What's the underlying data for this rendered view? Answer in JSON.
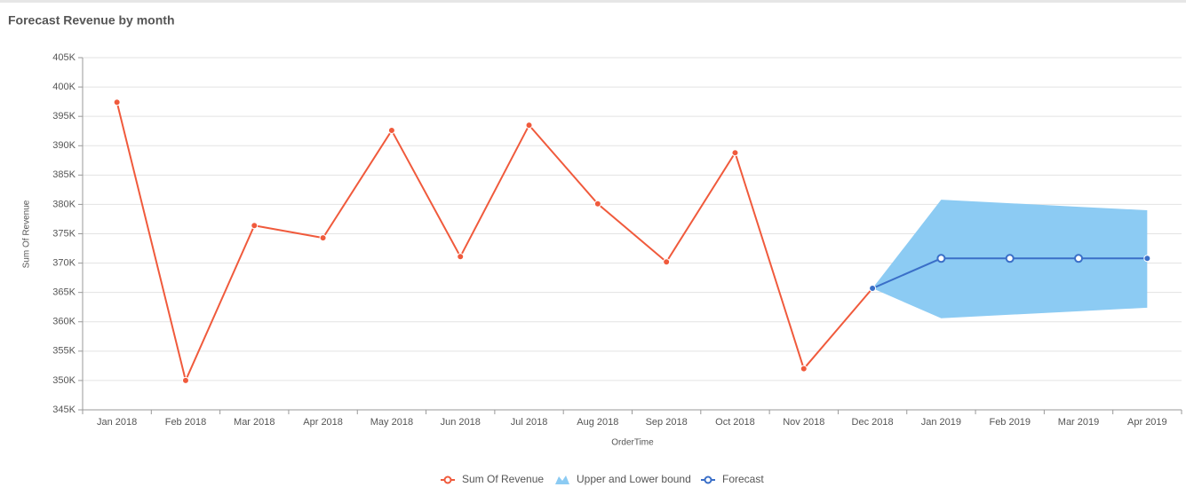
{
  "chart_data": {
    "type": "line",
    "title": "Forecast Revenue by month",
    "x_label": "OrderTime",
    "y_label": "Sum Of Revenue",
    "categories": [
      "Jan 2018",
      "Feb 2018",
      "Mar 2018",
      "Apr 2018",
      "May 2018",
      "Jun 2018",
      "Jul 2018",
      "Aug 2018",
      "Sep 2018",
      "Oct 2018",
      "Nov 2018",
      "Dec 2018",
      "Jan 2019",
      "Feb 2019",
      "Mar 2019",
      "Apr 2019"
    ],
    "ylim": [
      345000,
      405000
    ],
    "yticks": [
      {
        "value": 345000,
        "label": "345K"
      },
      {
        "value": 350000,
        "label": "350K"
      },
      {
        "value": 355000,
        "label": "355K"
      },
      {
        "value": 360000,
        "label": "360K"
      },
      {
        "value": 365000,
        "label": "365K"
      },
      {
        "value": 370000,
        "label": "370K"
      },
      {
        "value": 375000,
        "label": "375K"
      },
      {
        "value": 380000,
        "label": "380K"
      },
      {
        "value": 385000,
        "label": "385K"
      },
      {
        "value": 390000,
        "label": "390K"
      },
      {
        "value": 395000,
        "label": "395K"
      },
      {
        "value": 400000,
        "label": "400K"
      },
      {
        "value": 405000,
        "label": "405K"
      }
    ],
    "grid": true,
    "series": [
      {
        "name": "Sum Of Revenue",
        "type": "line",
        "color": "#f05a3c",
        "values": [
          397400,
          350000,
          376400,
          374300,
          392600,
          371100,
          393500,
          380100,
          370200,
          388800,
          352000,
          365700,
          null,
          null,
          null,
          null
        ]
      },
      {
        "name": "Upper and Lower bound",
        "type": "range",
        "color": "#8ccbf3",
        "upper": [
          null,
          null,
          null,
          null,
          null,
          null,
          null,
          null,
          null,
          null,
          null,
          365700,
          380800,
          380200,
          379600,
          379000
        ],
        "lower": [
          null,
          null,
          null,
          null,
          null,
          null,
          null,
          null,
          null,
          null,
          null,
          365700,
          360600,
          361200,
          361800,
          362400
        ]
      },
      {
        "name": "Forecast",
        "type": "line",
        "color": "#3a6fc8",
        "values": [
          null,
          null,
          null,
          null,
          null,
          null,
          null,
          null,
          null,
          null,
          null,
          365700,
          370800,
          370800,
          370800,
          370800
        ]
      }
    ]
  }
}
